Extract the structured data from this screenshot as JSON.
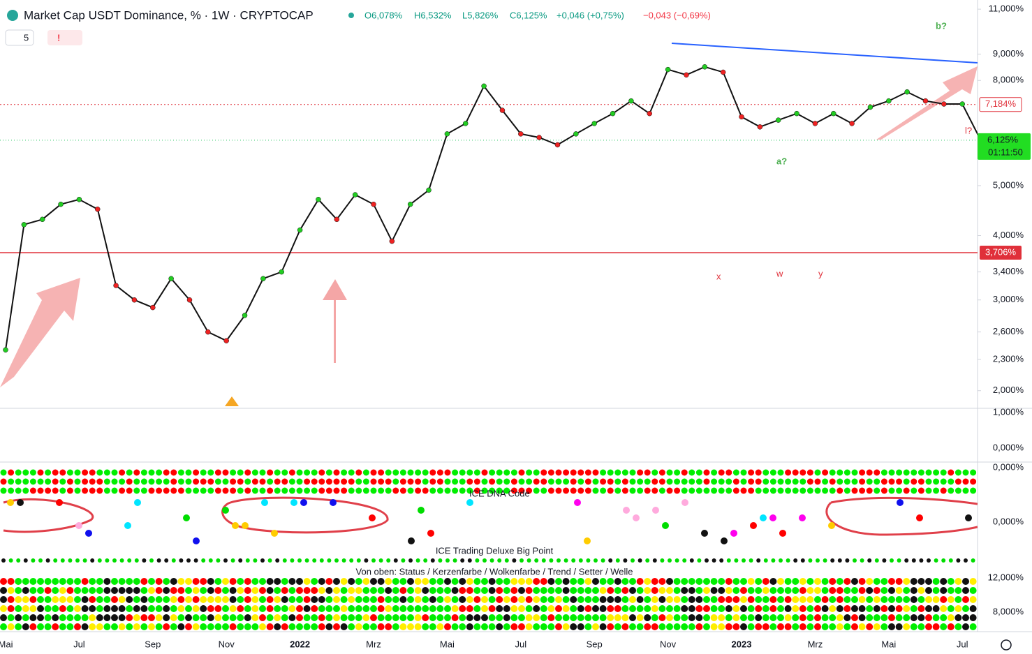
{
  "header": {
    "symbol": "Market Cap USDT Dominance, % · 1W · CRYPTOCAP",
    "open": "O6,078%",
    "high": "H6,532%",
    "low": "L5,826%",
    "close": "C6,125%",
    "change": "+0,046 (+0,75%)",
    "change2": "−0,043 (−0,69%)",
    "count": "5"
  },
  "chart_data": {
    "type": "line",
    "color": "#111111",
    "log_scale": true,
    "categories": [
      "Mai",
      null,
      null,
      null,
      "Jul",
      null,
      null,
      null,
      "Sep",
      null,
      null,
      null,
      "Nov",
      null,
      null,
      null,
      "2022",
      null,
      null,
      null,
      "Mrz",
      null,
      null,
      null,
      "Mai",
      null,
      null,
      null,
      "Jul",
      null,
      null,
      null,
      "Sep",
      null,
      null,
      null,
      "Nov",
      null,
      null,
      null,
      "2023",
      null,
      null,
      null,
      "Mrz",
      null,
      null,
      null,
      "Mai",
      null,
      null,
      null,
      "Jul",
      null
    ],
    "values": [
      2.4,
      4.2,
      4.3,
      4.6,
      4.7,
      4.5,
      3.2,
      3.0,
      2.9,
      3.3,
      3.0,
      2.6,
      2.5,
      2.8,
      3.3,
      3.4,
      4.1,
      4.7,
      4.3,
      4.8,
      4.6,
      3.9,
      4.6,
      4.9,
      6.3,
      6.6,
      7.8,
      7.0,
      6.3,
      6.2,
      6.0,
      6.3,
      6.6,
      6.9,
      7.3,
      6.9,
      8.4,
      8.2,
      8.5,
      8.3,
      6.8,
      6.5,
      6.7,
      6.9,
      6.6,
      6.9,
      6.6,
      7.1,
      7.3,
      7.6,
      7.3,
      7.2,
      7.2,
      6.125
    ],
    "ylim": [
      1.86,
      11.46
    ],
    "yticks": [
      {
        "value": 2,
        "label": "2,000%"
      },
      {
        "value": 2.3,
        "label": "2,300%"
      },
      {
        "value": 2.6,
        "label": "2,600%"
      },
      {
        "value": 3,
        "label": "3,000%"
      },
      {
        "value": 3.4,
        "label": "3,400%"
      },
      {
        "value": 4,
        "label": "4,000%"
      },
      {
        "value": 5,
        "label": "5,000%"
      },
      {
        "value": 8,
        "label": "8,000%"
      },
      {
        "value": 9,
        "label": "9,000%"
      },
      {
        "value": 11,
        "label": "11,000%"
      }
    ],
    "hline": {
      "value": 3.706,
      "label": "3,706%",
      "color": "#e0303a"
    },
    "level": {
      "value": 7.184,
      "label": "7,184%"
    },
    "last": {
      "value": 6.125,
      "label": "6,125%",
      "timer": "01:11:50"
    },
    "annotations": [
      "b?",
      "a?",
      "x",
      "w",
      "y",
      "l?"
    ]
  },
  "panels": {
    "macd_ticks": [
      "1,000%",
      "0,000%"
    ],
    "dna_ticks": [
      "0,000%",
      "0,000%"
    ],
    "dna_title": "ICE DNA Code",
    "bigpoint_title": "ICE Trading Deluxe Big Point",
    "legend": "Von oben: Status / Kerzenfarbe / Wolkenfarbe / Trend / Setter / Welle",
    "bottom_ticks": [
      "12,000%",
      "8,000%"
    ]
  }
}
